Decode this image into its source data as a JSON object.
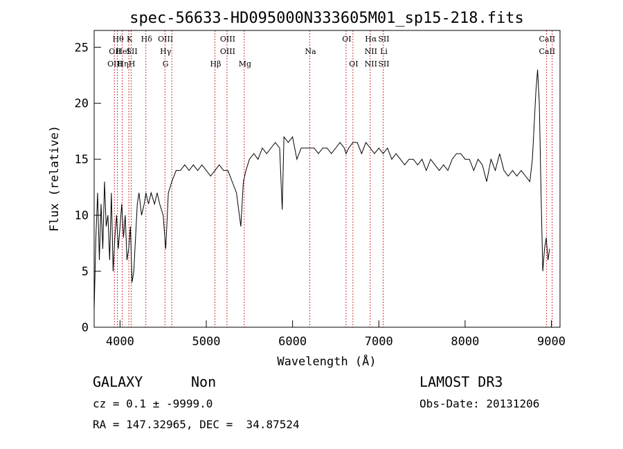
{
  "chart_data": {
    "type": "line",
    "title": "spec-56633-HD095000N333605M01_sp15-218.fits",
    "xlabel": "Wavelength (Å)",
    "ylabel": "Flux (relative)",
    "xlim": [
      3700,
      9100
    ],
    "ylim": [
      0,
      26.5
    ],
    "x_ticks": [
      4000,
      5000,
      6000,
      7000,
      8000,
      9000
    ],
    "y_ticks": [
      0,
      5,
      10,
      15,
      20,
      25
    ],
    "series": [
      {
        "x": [
          3700,
          3720,
          3740,
          3760,
          3780,
          3800,
          3820,
          3840,
          3860,
          3880,
          3900,
          3920,
          3940,
          3960,
          3980,
          4000,
          4020,
          4040,
          4060,
          4080,
          4100,
          4120,
          4140,
          4160,
          4180,
          4200,
          4220,
          4250,
          4280,
          4300,
          4330,
          4360,
          4400,
          4430,
          4460,
          4500,
          4530,
          4560,
          4600,
          4650,
          4700,
          4750,
          4800,
          4850,
          4900,
          4950,
          5000,
          5050,
          5100,
          5150,
          5200,
          5250,
          5300,
          5350,
          5400,
          5430,
          5460,
          5500,
          5550,
          5600,
          5650,
          5700,
          5750,
          5800,
          5850,
          5880,
          5900,
          5950,
          6000,
          6050,
          6100,
          6150,
          6200,
          6250,
          6300,
          6350,
          6400,
          6450,
          6500,
          6550,
          6600,
          6620,
          6650,
          6700,
          6750,
          6800,
          6850,
          6900,
          6950,
          7000,
          7050,
          7100,
          7150,
          7200,
          7250,
          7300,
          7350,
          7400,
          7450,
          7500,
          7550,
          7600,
          7650,
          7700,
          7750,
          7800,
          7850,
          7900,
          7950,
          8000,
          8050,
          8100,
          8150,
          8200,
          8250,
          8300,
          8350,
          8400,
          8450,
          8500,
          8550,
          8600,
          8650,
          8700,
          8750,
          8780,
          8800,
          8820,
          8840,
          8860,
          8880,
          8900,
          8920,
          8940,
          8960,
          8980
        ],
        "y": [
          1.5,
          8,
          12,
          6,
          11,
          7,
          13,
          9,
          10,
          6,
          12,
          5,
          8,
          10,
          7,
          9,
          11,
          8,
          10,
          6,
          7,
          9,
          4,
          5,
          8,
          11,
          12,
          10,
          11,
          12,
          11,
          12,
          11,
          12,
          11,
          10,
          7,
          12,
          13,
          14,
          14,
          14.5,
          14,
          14.5,
          14,
          14.5,
          14,
          13.5,
          14,
          14.5,
          14,
          14,
          13,
          12,
          9,
          13,
          14,
          15,
          15.5,
          15,
          16,
          15.5,
          16,
          16.5,
          16,
          10.5,
          17,
          16.5,
          17,
          15,
          16,
          16,
          16,
          16,
          15.5,
          16,
          16,
          15.5,
          16,
          16.5,
          16,
          15.5,
          16,
          16.5,
          16.5,
          15.5,
          16.5,
          16,
          15.5,
          16,
          15.5,
          16,
          15,
          15.5,
          15,
          14.5,
          15,
          15,
          14.5,
          15,
          14,
          15,
          14.5,
          14,
          14.5,
          14,
          15,
          15.5,
          15.5,
          15,
          15,
          14,
          15,
          14.5,
          13,
          15,
          14,
          15.5,
          14,
          13.5,
          14,
          13.5,
          14,
          13.5,
          13,
          15,
          18,
          21,
          23,
          20,
          12,
          5,
          7,
          8,
          6,
          7
        ]
      }
    ],
    "line_ids": [
      {
        "w": 3934,
        "top": "",
        "mid": "OII",
        "bot": "OIII"
      },
      {
        "w": 3970,
        "top": "Hθ",
        "mid": "",
        "bot": ""
      },
      {
        "w": 4026,
        "top": "",
        "mid": "HeI",
        "bot": "Hη"
      },
      {
        "w": 4102,
        "top": "K",
        "mid": "",
        "bot": ""
      },
      {
        "w": 4130,
        "top": "",
        "mid": "SII",
        "bot": "H"
      },
      {
        "w": 4300,
        "top": "Hδ",
        "mid": "",
        "bot": ""
      },
      {
        "w": 4520,
        "top": "OIII",
        "mid": "Hγ",
        "bot": "G"
      },
      {
        "w": 4600,
        "top": "",
        "mid": "",
        "bot": ""
      },
      {
        "w": 5100,
        "top": "",
        "mid": "",
        "bot": "Hβ"
      },
      {
        "w": 5240,
        "top": "OIII",
        "mid": "OIII",
        "bot": ""
      },
      {
        "w": 5440,
        "top": "",
        "mid": "",
        "bot": "Mg"
      },
      {
        "w": 6200,
        "top": "",
        "mid": "Na",
        "bot": ""
      },
      {
        "w": 6620,
        "top": "OI",
        "mid": "",
        "bot": ""
      },
      {
        "w": 6700,
        "top": "",
        "mid": "",
        "bot": "OI"
      },
      {
        "w": 6900,
        "top": "Hα",
        "mid": "NII",
        "bot": "NII"
      },
      {
        "w": 7050,
        "top": "SII",
        "mid": "Li",
        "bot": "SII"
      },
      {
        "w": 8942,
        "top": "CaII",
        "mid": "CaII",
        "bot": ""
      },
      {
        "w": 9010,
        "top": "",
        "mid": "",
        "bot": ""
      }
    ],
    "grid": false
  },
  "footer": {
    "class_label": "GALAXY",
    "subclass": "Non",
    "survey": "LAMOST DR3",
    "cz": "cz = 0.1 ± -9999.0",
    "obs_date": "Obs-Date: 20131206",
    "radec": "RA = 147.32965, DEC =  34.87524"
  }
}
